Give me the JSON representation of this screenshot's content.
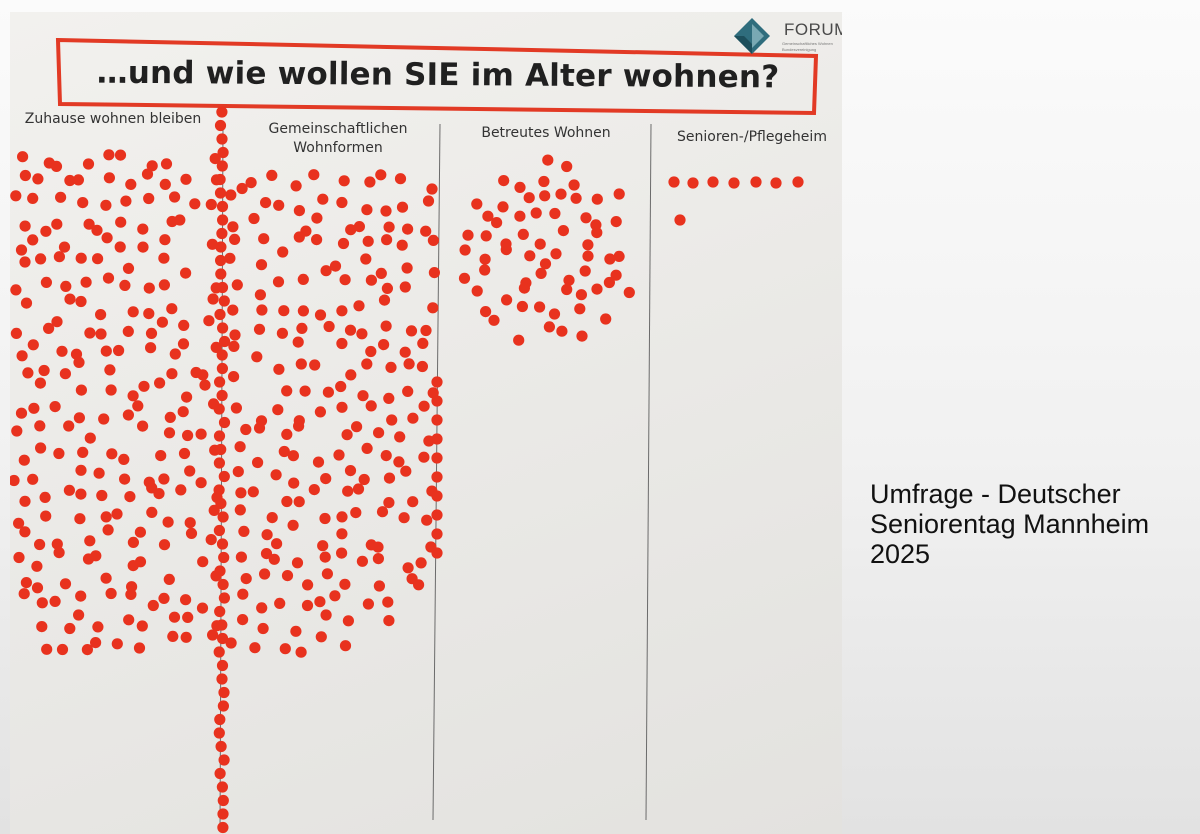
{
  "poster": {
    "logo": {
      "word": "FORUM",
      "sub_line1": "Gemeinschaftliches Wohnen",
      "sub_line2": "Bundesvereinigung",
      "icon": "forum-logo-icon"
    },
    "headline": "…und wie wollen SIE im Alter wohnen?",
    "columns": [
      {
        "label": "Zuhause wohnen bleiben"
      },
      {
        "label": "Gemeinschaftlichen Wohnformen"
      },
      {
        "label": "Betreutes Wohnen"
      },
      {
        "label": "Senioren-/Pflegeheim"
      }
    ],
    "dot_color": "#e8321e",
    "frame_color": "#e23a25"
  },
  "caption": {
    "line1": "Umfrage - Deutscher",
    "line2": "Seniorentag Mannheim",
    "line3": "2025"
  }
}
